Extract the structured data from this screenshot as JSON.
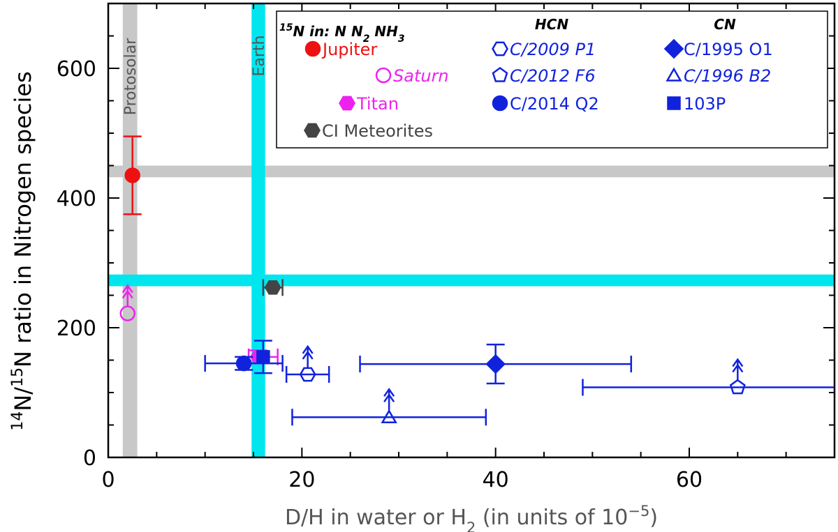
{
  "chart_data": {
    "type": "scatter",
    "xlim": [
      0,
      75
    ],
    "ylim": [
      0,
      700
    ],
    "x_ticks": [
      "0",
      "20",
      "40",
      "60"
    ],
    "y_ticks": [
      "0",
      "200",
      "400",
      "600"
    ],
    "xlabel": "D/H in water or H2 (in units of 10^-5)",
    "xlabel_parts": {
      "before_sub": "D/H in water or H",
      "sub": "2",
      "after_sub": " (in units of 10",
      "sup": "−5",
      "end": ")"
    },
    "ylabel": "14N/15N ratio in Nitrogen species",
    "ylabel_parts": {
      "sup1": "14",
      "mid1": "N/",
      "sup2": "15",
      "rest": "N ratio in Nitrogen species"
    },
    "reference_bands": [
      {
        "name": "Protosolar",
        "orientation": "vertical",
        "x": [
          1.5,
          3.0
        ],
        "color": "#c8c8c8",
        "label": "Protosolar"
      },
      {
        "name": "Protosolar",
        "orientation": "horizontal",
        "y": [
          432,
          450
        ],
        "color": "#c8c8c8"
      },
      {
        "name": "Earth",
        "orientation": "vertical",
        "x": [
          14.8,
          16.2
        ],
        "color": "#00e6ee",
        "label": "Earth"
      },
      {
        "name": "Earth",
        "orientation": "horizontal",
        "y": [
          264,
          282
        ],
        "color": "#00e6ee"
      }
    ],
    "legend": {
      "placement": "top-right",
      "col_titles": {
        "nh3": {
          "sup": "15",
          "text": "N in: N N",
          "sub": "2",
          "text2": " NH",
          "sub2": "3"
        },
        "hcn": "HCN",
        "cn": "CN"
      },
      "entries": [
        {
          "label": "Jupiter",
          "marker": "circle",
          "color": "#ee1111",
          "filled": true
        },
        {
          "label": "Saturn",
          "marker": "circle",
          "color": "#ee22ee",
          "filled": false
        },
        {
          "label": "Titan",
          "marker": "hexagon",
          "color": "#ee22ee",
          "filled": true
        },
        {
          "label": "CI Meteorites",
          "marker": "hexagon",
          "color": "#444444",
          "filled": true
        },
        {
          "label": "C/2009 P1",
          "marker": "hexagon",
          "color": "#1122dd",
          "filled": false
        },
        {
          "label": "C/2012 F6",
          "marker": "pentagon",
          "color": "#1122dd",
          "filled": false
        },
        {
          "label": "C/2014 Q2",
          "marker": "circle",
          "color": "#1122dd",
          "filled": true
        },
        {
          "label": "C/1995 O1",
          "marker": "diamond",
          "color": "#1122dd",
          "filled": true
        },
        {
          "label": "C/1996 B2",
          "marker": "triangle",
          "color": "#1122dd",
          "filled": false
        },
        {
          "label": "103P",
          "marker": "square",
          "color": "#1122dd",
          "filled": true
        }
      ]
    },
    "series": [
      {
        "name": "Jupiter",
        "marker": "circle",
        "color": "#ee1111",
        "filled": true,
        "points": [
          {
            "x": 2.5,
            "y": 435,
            "yerr": [
              375,
              495
            ]
          }
        ]
      },
      {
        "name": "Saturn",
        "marker": "circle",
        "color": "#ee22ee",
        "filled": false,
        "points": [
          {
            "x": 2.0,
            "y": 222,
            "lower_limit": true
          }
        ]
      },
      {
        "name": "Titan",
        "marker": "hexagon",
        "color": "#ee22ee",
        "filled": true,
        "points": [
          {
            "x": 15.5,
            "y": 155,
            "xerr": [
              14.5,
              17.5
            ],
            "yerr": [
              145,
              165
            ]
          }
        ]
      },
      {
        "name": "CI Meteorites",
        "marker": "hexagon",
        "color": "#444444",
        "filled": true,
        "points": [
          {
            "x": 17.0,
            "y": 262,
            "xerr": [
              16.0,
              18.0
            ]
          }
        ]
      },
      {
        "name": "C/2009 P1",
        "marker": "hexagon",
        "color": "#1122dd",
        "filled": false,
        "points": [
          {
            "x": 20.6,
            "y": 128,
            "xerr": [
              18.4,
              22.8
            ],
            "lower_limit": true
          }
        ]
      },
      {
        "name": "C/2012 F6",
        "marker": "pentagon",
        "color": "#1122dd",
        "filled": false,
        "points": [
          {
            "x": 65.0,
            "y": 108,
            "xerr": [
              49.0,
              81.0
            ],
            "lower_limit": true
          }
        ]
      },
      {
        "name": "C/2014 Q2",
        "marker": "circle",
        "color": "#1122dd",
        "filled": true,
        "points": [
          {
            "x": 14.0,
            "y": 145,
            "xerr": [
              10.0,
              18.0
            ],
            "yerr": [
              135,
              155
            ]
          }
        ]
      },
      {
        "name": "C/1995 O1",
        "marker": "diamond",
        "color": "#1122dd",
        "filled": true,
        "points": [
          {
            "x": 40.0,
            "y": 144,
            "xerr": [
              26.0,
              54.0
            ],
            "yerr": [
              114,
              174
            ]
          }
        ]
      },
      {
        "name": "C/1996 B2",
        "marker": "triangle",
        "color": "#1122dd",
        "filled": false,
        "points": [
          {
            "x": 29.0,
            "y": 62,
            "xerr": [
              19.0,
              39.0
            ],
            "lower_limit": true
          }
        ]
      },
      {
        "name": "103P",
        "marker": "square",
        "color": "#1122dd",
        "filled": true,
        "points": [
          {
            "x": 16.0,
            "y": 155,
            "yerr": [
              130,
              180
            ]
          }
        ]
      }
    ]
  }
}
